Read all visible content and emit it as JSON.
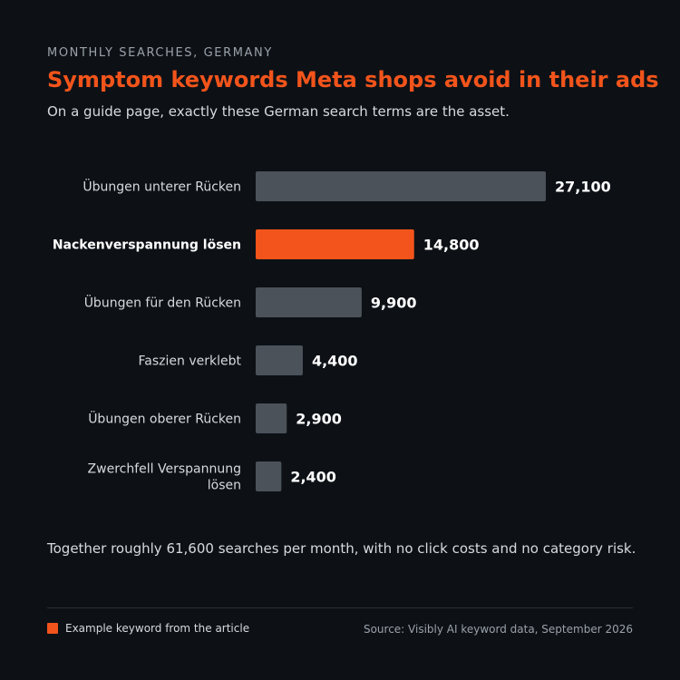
{
  "header": {
    "eyebrow": "MONTHLY SEARCHES, GERMANY",
    "title": "Symptom keywords Meta shops avoid in their ads",
    "subtitle": "On a guide page, exactly these German search terms are the asset."
  },
  "chart_data": {
    "type": "bar",
    "orientation": "horizontal",
    "categories": [
      "Übungen unterer Rücken",
      "Nackenverspannung lösen",
      "Übungen für den Rücken",
      "Faszien verklebt",
      "Übungen oberer Rücken",
      "Zwerchfell Verspannung lösen"
    ],
    "values": [
      27100,
      14800,
      9900,
      4400,
      2900,
      2400
    ],
    "value_labels": [
      "27,100",
      "14,800",
      "9,900",
      "4,400",
      "2,900",
      "2,400"
    ],
    "highlight_index": 1,
    "xlim": [
      0,
      27100
    ],
    "grid": false,
    "colors": {
      "default": "#4b525a",
      "highlight": "#f2541b"
    }
  },
  "footnote": "Together roughly 61,600 searches per month, with no click costs and no category risk.",
  "legend": {
    "label": "Example keyword from the article",
    "color": "#f2541b"
  },
  "source": "Source: Visibly AI keyword data, September 2026"
}
